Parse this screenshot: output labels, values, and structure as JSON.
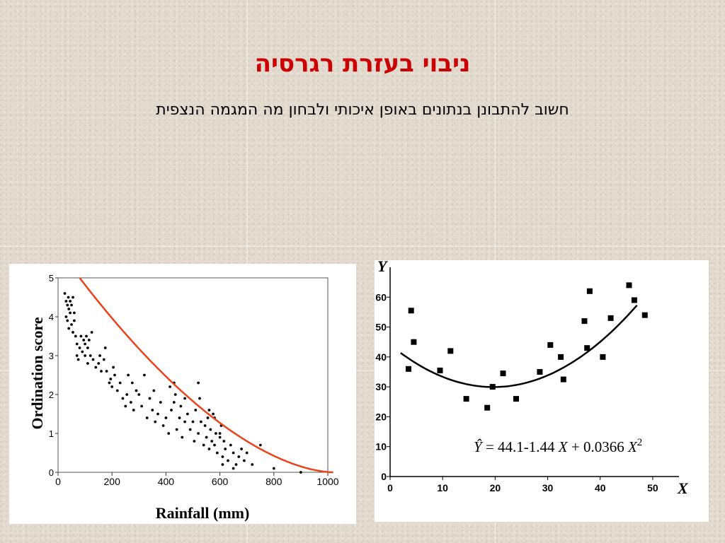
{
  "slide": {
    "title": "ניבוי בעזרת רגרסיה",
    "subtitle": "חשוב להתבונן בנתונים באופן איכותי ולבחון מה המגמה הנצפית"
  },
  "chart_data": [
    {
      "type": "scatter",
      "xlabel": "Rainfall (mm)",
      "ylabel": "Ordination score",
      "xlim": [
        0,
        1000
      ],
      "ylim": [
        0,
        5
      ],
      "xticks": [
        0,
        200,
        400,
        600,
        800,
        1000
      ],
      "yticks": [
        0,
        1,
        2,
        3,
        4,
        5
      ],
      "grid": false,
      "curve_color": "#e8431a",
      "series": [
        {
          "points": [
            [
              25,
              4.6
            ],
            [
              30,
              4.4
            ],
            [
              35,
              4.3
            ],
            [
              38,
              4.5
            ],
            [
              40,
              4.2
            ],
            [
              45,
              4.1
            ],
            [
              45,
              4.4
            ],
            [
              50,
              4.3
            ],
            [
              55,
              4.5
            ],
            [
              30,
              4.0
            ],
            [
              35,
              3.9
            ],
            [
              40,
              3.7
            ],
            [
              50,
              3.8
            ],
            [
              55,
              3.6
            ],
            [
              60,
              3.9
            ],
            [
              60,
              4.1
            ],
            [
              65,
              3.5
            ],
            [
              70,
              3.3
            ],
            [
              70,
              3.0
            ],
            [
              75,
              2.9
            ],
            [
              80,
              3.2
            ],
            [
              85,
              3.5
            ],
            [
              90,
              3.1
            ],
            [
              95,
              3.4
            ],
            [
              100,
              3.3
            ],
            [
              100,
              3.0
            ],
            [
              105,
              3.5
            ],
            [
              110,
              3.2
            ],
            [
              110,
              2.8
            ],
            [
              115,
              3.4
            ],
            [
              120,
              3.0
            ],
            [
              125,
              3.6
            ],
            [
              130,
              2.9
            ],
            [
              140,
              2.7
            ],
            [
              150,
              2.8
            ],
            [
              155,
              3.0
            ],
            [
              160,
              2.6
            ],
            [
              170,
              2.9
            ],
            [
              175,
              3.2
            ],
            [
              180,
              2.6
            ],
            [
              190,
              2.3
            ],
            [
              195,
              2.4
            ],
            [
              200,
              2.2
            ],
            [
              205,
              2.7
            ],
            [
              210,
              2.5
            ],
            [
              220,
              2.1
            ],
            [
              230,
              2.3
            ],
            [
              240,
              1.9
            ],
            [
              250,
              1.7
            ],
            [
              255,
              2.0
            ],
            [
              260,
              2.5
            ],
            [
              270,
              1.8
            ],
            [
              275,
              2.3
            ],
            [
              280,
              1.6
            ],
            [
              290,
              2.1
            ],
            [
              300,
              2.0
            ],
            [
              310,
              1.7
            ],
            [
              320,
              2.5
            ],
            [
              330,
              1.4
            ],
            [
              340,
              1.9
            ],
            [
              350,
              1.6
            ],
            [
              355,
              2.1
            ],
            [
              360,
              1.3
            ],
            [
              370,
              1.5
            ],
            [
              380,
              1.8
            ],
            [
              390,
              1.2
            ],
            [
              400,
              1.4
            ],
            [
              410,
              1.0
            ],
            [
              415,
              2.2
            ],
            [
              420,
              1.6
            ],
            [
              430,
              1.8
            ],
            [
              435,
              2.0
            ],
            [
              440,
              1.1
            ],
            [
              450,
              1.4
            ],
            [
              455,
              1.7
            ],
            [
              460,
              0.9
            ],
            [
              470,
              1.3
            ],
            [
              480,
              1.5
            ],
            [
              490,
              1.1
            ],
            [
              500,
              1.3
            ],
            [
              505,
              0.8
            ],
            [
              510,
              1.6
            ],
            [
              520,
              1.0
            ],
            [
              525,
              1.9
            ],
            [
              530,
              1.3
            ],
            [
              540,
              0.7
            ],
            [
              545,
              1.2
            ],
            [
              550,
              0.9
            ],
            [
              555,
              1.4
            ],
            [
              560,
              0.6
            ],
            [
              565,
              1.1
            ],
            [
              570,
              0.8
            ],
            [
              575,
              1.5
            ],
            [
              580,
              0.7
            ],
            [
              585,
              1.0
            ],
            [
              590,
              0.5
            ],
            [
              600,
              0.9
            ],
            [
              605,
              1.2
            ],
            [
              610,
              0.4
            ],
            [
              615,
              0.8
            ],
            [
              620,
              0.6
            ],
            [
              630,
              0.3
            ],
            [
              640,
              0.7
            ],
            [
              650,
              0.5
            ],
            [
              660,
              0.2
            ],
            [
              670,
              0.4
            ],
            [
              680,
              0.6
            ],
            [
              690,
              0.3
            ],
            [
              700,
              0.5
            ],
            [
              720,
              0.2
            ],
            [
              750,
              0.7
            ],
            [
              800,
              0.1
            ],
            [
              900,
              0.0
            ],
            [
              430,
              2.3
            ],
            [
              470,
              1.9
            ],
            [
              520,
              2.3
            ],
            [
              560,
              1.6
            ],
            [
              580,
              1.4
            ],
            [
              600,
              1.0
            ],
            [
              610,
              0.2
            ],
            [
              650,
              0.1
            ]
          ]
        }
      ]
    },
    {
      "type": "scatter",
      "xlabel": "X",
      "ylabel": "Y",
      "xlim": [
        0,
        55
      ],
      "ylim": [
        0,
        70
      ],
      "xticks": [
        0,
        10,
        20,
        30,
        40,
        50
      ],
      "yticks": [
        0,
        10,
        20,
        30,
        40,
        50,
        60
      ],
      "grid": false,
      "equation": {
        "lhs": "Ŷ",
        "text": " = 44.1-1.44 ",
        "x1": "X",
        "plus": " + 0.0366 ",
        "x2": "X",
        "exp": "2"
      },
      "fit": {
        "a": 44.1,
        "b": -1.44,
        "c": 0.0366,
        "x_range": [
          2,
          47
        ]
      },
      "series": [
        {
          "points": [
            [
              3.5,
              36
            ],
            [
              4,
              55.5
            ],
            [
              4.5,
              45
            ],
            [
              9.5,
              35.5
            ],
            [
              11.5,
              42
            ],
            [
              14.5,
              26
            ],
            [
              18.5,
              23
            ],
            [
              19.5,
              30
            ],
            [
              21.5,
              34.5
            ],
            [
              24,
              26
            ],
            [
              28.5,
              35
            ],
            [
              30.5,
              44
            ],
            [
              32.5,
              40
            ],
            [
              33,
              32.5
            ],
            [
              37,
              52
            ],
            [
              37.5,
              43
            ],
            [
              38,
              62
            ],
            [
              40.5,
              40
            ],
            [
              42,
              53
            ],
            [
              45.5,
              64
            ],
            [
              46.5,
              59
            ],
            [
              48.5,
              54
            ]
          ]
        }
      ]
    }
  ]
}
